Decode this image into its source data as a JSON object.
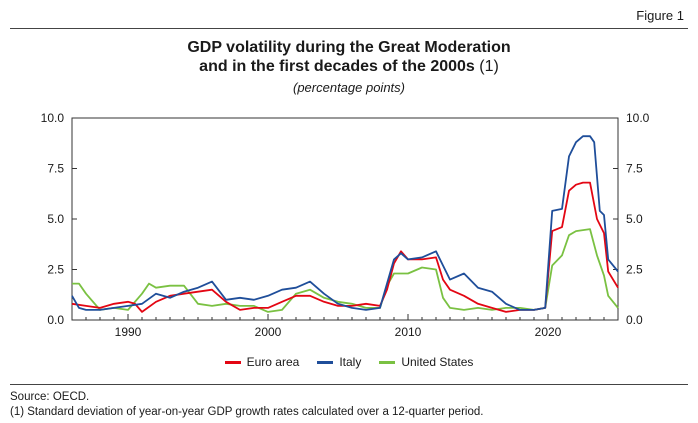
{
  "figure_label": "Figure 1",
  "title_line1": "GDP volatility during the Great Moderation",
  "title_line2": "and in the first decades of the 2000s",
  "title_note": "(1)",
  "subtitle": "(percentage points)",
  "source": "Source: OECD.",
  "footnote": "(1) Standard deviation of year-on-year GDP growth rates calculated over a 12-quarter period.",
  "chart_data": {
    "type": "line",
    "title": "GDP volatility during the Great Moderation and in the first decades of the 2000s (1)",
    "subtitle": "(percentage points)",
    "xlabel": "",
    "ylabel": "",
    "xlim": [
      1986,
      2025
    ],
    "ylim": [
      0,
      10
    ],
    "x_ticks": [
      1990,
      2000,
      2010,
      2020
    ],
    "y_ticks": [
      0.0,
      2.5,
      5.0,
      7.5,
      10.0
    ],
    "y_tick_labels": [
      "0.0",
      "2.5",
      "5.0",
      "7.5",
      "10.0"
    ],
    "dual_y_axis": true,
    "grid": false,
    "legend_position": "bottom",
    "colors": {
      "Euro area": "#e30613",
      "Italy": "#1f4e9a",
      "United States": "#7ac142"
    },
    "series": [
      {
        "name": "Euro area",
        "points": [
          [
            1986,
            0.8
          ],
          [
            1987,
            0.7
          ],
          [
            1988,
            0.6
          ],
          [
            1989,
            0.8
          ],
          [
            1990,
            0.9
          ],
          [
            1990.5,
            0.8
          ],
          [
            1991,
            0.4
          ],
          [
            1992,
            0.9
          ],
          [
            1993,
            1.2
          ],
          [
            1994,
            1.3
          ],
          [
            1995,
            1.4
          ],
          [
            1996,
            1.5
          ],
          [
            1997,
            0.9
          ],
          [
            1998,
            0.5
          ],
          [
            1999,
            0.6
          ],
          [
            2000,
            0.6
          ],
          [
            2001,
            0.9
          ],
          [
            2002,
            1.2
          ],
          [
            2003,
            1.2
          ],
          [
            2004,
            0.9
          ],
          [
            2005,
            0.7
          ],
          [
            2006,
            0.7
          ],
          [
            2007,
            0.8
          ],
          [
            2008,
            0.7
          ],
          [
            2008.5,
            1.5
          ],
          [
            2009,
            2.8
          ],
          [
            2009.5,
            3.4
          ],
          [
            2010,
            3.0
          ],
          [
            2011,
            3.0
          ],
          [
            2012,
            3.1
          ],
          [
            2012.5,
            2.0
          ],
          [
            2013,
            1.5
          ],
          [
            2014,
            1.2
          ],
          [
            2015,
            0.8
          ],
          [
            2016,
            0.6
          ],
          [
            2017,
            0.4
          ],
          [
            2018,
            0.5
          ],
          [
            2019,
            0.5
          ],
          [
            2019.8,
            0.6
          ],
          [
            2020.3,
            4.4
          ],
          [
            2021,
            4.6
          ],
          [
            2021.5,
            6.4
          ],
          [
            2022,
            6.7
          ],
          [
            2022.5,
            6.8
          ],
          [
            2023,
            6.8
          ],
          [
            2023.5,
            5.0
          ],
          [
            2024,
            4.3
          ],
          [
            2024.3,
            2.4
          ],
          [
            2025,
            1.6
          ]
        ]
      },
      {
        "name": "Italy",
        "points": [
          [
            1986,
            1.2
          ],
          [
            1986.5,
            0.6
          ],
          [
            1987,
            0.5
          ],
          [
            1988,
            0.5
          ],
          [
            1989,
            0.6
          ],
          [
            1990,
            0.7
          ],
          [
            1991,
            0.8
          ],
          [
            1992,
            1.3
          ],
          [
            1993,
            1.1
          ],
          [
            1994,
            1.4
          ],
          [
            1995,
            1.6
          ],
          [
            1996,
            1.9
          ],
          [
            1997,
            1.0
          ],
          [
            1998,
            1.1
          ],
          [
            1999,
            1.0
          ],
          [
            2000,
            1.2
          ],
          [
            2001,
            1.5
          ],
          [
            2002,
            1.6
          ],
          [
            2003,
            1.9
          ],
          [
            2004,
            1.3
          ],
          [
            2005,
            0.8
          ],
          [
            2006,
            0.6
          ],
          [
            2007,
            0.5
          ],
          [
            2008,
            0.6
          ],
          [
            2008.5,
            1.8
          ],
          [
            2009,
            3.0
          ],
          [
            2009.5,
            3.3
          ],
          [
            2010,
            3.0
          ],
          [
            2011,
            3.1
          ],
          [
            2012,
            3.4
          ],
          [
            2012.5,
            2.7
          ],
          [
            2013,
            2.0
          ],
          [
            2014,
            2.3
          ],
          [
            2015,
            1.6
          ],
          [
            2016,
            1.4
          ],
          [
            2017,
            0.8
          ],
          [
            2018,
            0.5
          ],
          [
            2019,
            0.5
          ],
          [
            2019.8,
            0.6
          ],
          [
            2020.3,
            5.4
          ],
          [
            2021,
            5.5
          ],
          [
            2021.5,
            8.1
          ],
          [
            2022,
            8.8
          ],
          [
            2022.5,
            9.1
          ],
          [
            2023,
            9.1
          ],
          [
            2023.3,
            8.8
          ],
          [
            2023.7,
            5.4
          ],
          [
            2024,
            5.2
          ],
          [
            2024.3,
            3.0
          ],
          [
            2025,
            2.4
          ]
        ]
      },
      {
        "name": "United States",
        "points": [
          [
            1986,
            1.8
          ],
          [
            1986.5,
            1.8
          ],
          [
            1987,
            1.3
          ],
          [
            1988,
            0.5
          ],
          [
            1989,
            0.6
          ],
          [
            1990,
            0.5
          ],
          [
            1991,
            1.3
          ],
          [
            1991.5,
            1.8
          ],
          [
            1992,
            1.6
          ],
          [
            1993,
            1.7
          ],
          [
            1994,
            1.7
          ],
          [
            1995,
            0.8
          ],
          [
            1996,
            0.7
          ],
          [
            1997,
            0.8
          ],
          [
            1998,
            0.7
          ],
          [
            1999,
            0.7
          ],
          [
            2000,
            0.4
          ],
          [
            2001,
            0.5
          ],
          [
            2002,
            1.3
          ],
          [
            2003,
            1.5
          ],
          [
            2004,
            1.1
          ],
          [
            2005,
            0.9
          ],
          [
            2006,
            0.8
          ],
          [
            2007,
            0.6
          ],
          [
            2008,
            0.6
          ],
          [
            2008.5,
            1.7
          ],
          [
            2009,
            2.3
          ],
          [
            2010,
            2.3
          ],
          [
            2011,
            2.6
          ],
          [
            2012,
            2.5
          ],
          [
            2012.5,
            1.1
          ],
          [
            2013,
            0.6
          ],
          [
            2014,
            0.5
          ],
          [
            2015,
            0.6
          ],
          [
            2016,
            0.5
          ],
          [
            2017,
            0.6
          ],
          [
            2018,
            0.6
          ],
          [
            2019,
            0.5
          ],
          [
            2019.8,
            0.6
          ],
          [
            2020.3,
            2.7
          ],
          [
            2021,
            3.2
          ],
          [
            2021.5,
            4.2
          ],
          [
            2022,
            4.4
          ],
          [
            2023,
            4.5
          ],
          [
            2023.5,
            3.2
          ],
          [
            2024,
            2.2
          ],
          [
            2024.3,
            1.2
          ],
          [
            2025,
            0.6
          ]
        ]
      }
    ]
  }
}
